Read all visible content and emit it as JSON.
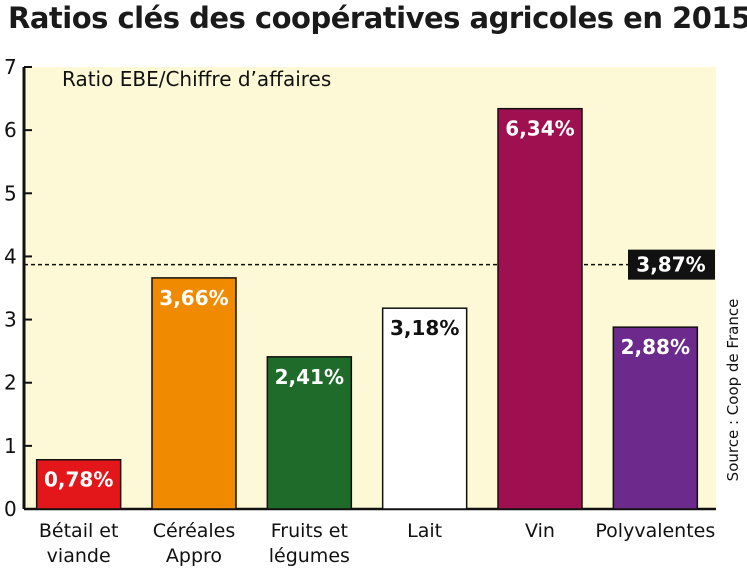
{
  "title": "Ratios clés des coopératives agricoles en 2015",
  "chart_data": {
    "type": "bar",
    "subtitle": "Ratio EBE/Chiffre d’affaires",
    "categories": [
      [
        "Bétail et",
        "viande"
      ],
      [
        "Céréales",
        "Appro"
      ],
      [
        "Fruits et",
        "légumes"
      ],
      [
        "Lait"
      ],
      [
        "Vin"
      ],
      [
        "Polyvalentes"
      ]
    ],
    "values": [
      0.78,
      3.66,
      2.41,
      3.18,
      6.34,
      2.88
    ],
    "value_labels": [
      "0,78%",
      "3,66%",
      "2,41%",
      "3,18%",
      "6,34%",
      "2,88%"
    ],
    "bar_colors": [
      "#e3161a",
      "#f08a00",
      "#1e6b2a",
      "#ffffff",
      "#9e1050",
      "#6b2a8c"
    ],
    "label_colors": [
      "#ffffff",
      "#ffffff",
      "#ffffff",
      "#111111",
      "#ffffff",
      "#ffffff"
    ],
    "reference_line": {
      "value": 3.87,
      "label": "3,87%",
      "style": "dashed"
    },
    "yticks": [
      "0",
      "1",
      "2",
      "3",
      "4",
      "5",
      "6",
      "7"
    ],
    "ylim": [
      0,
      7
    ],
    "xlabel": "",
    "ylabel": "",
    "grid": false,
    "background": "#fdf8d5",
    "source": "Source : Coop de France"
  }
}
